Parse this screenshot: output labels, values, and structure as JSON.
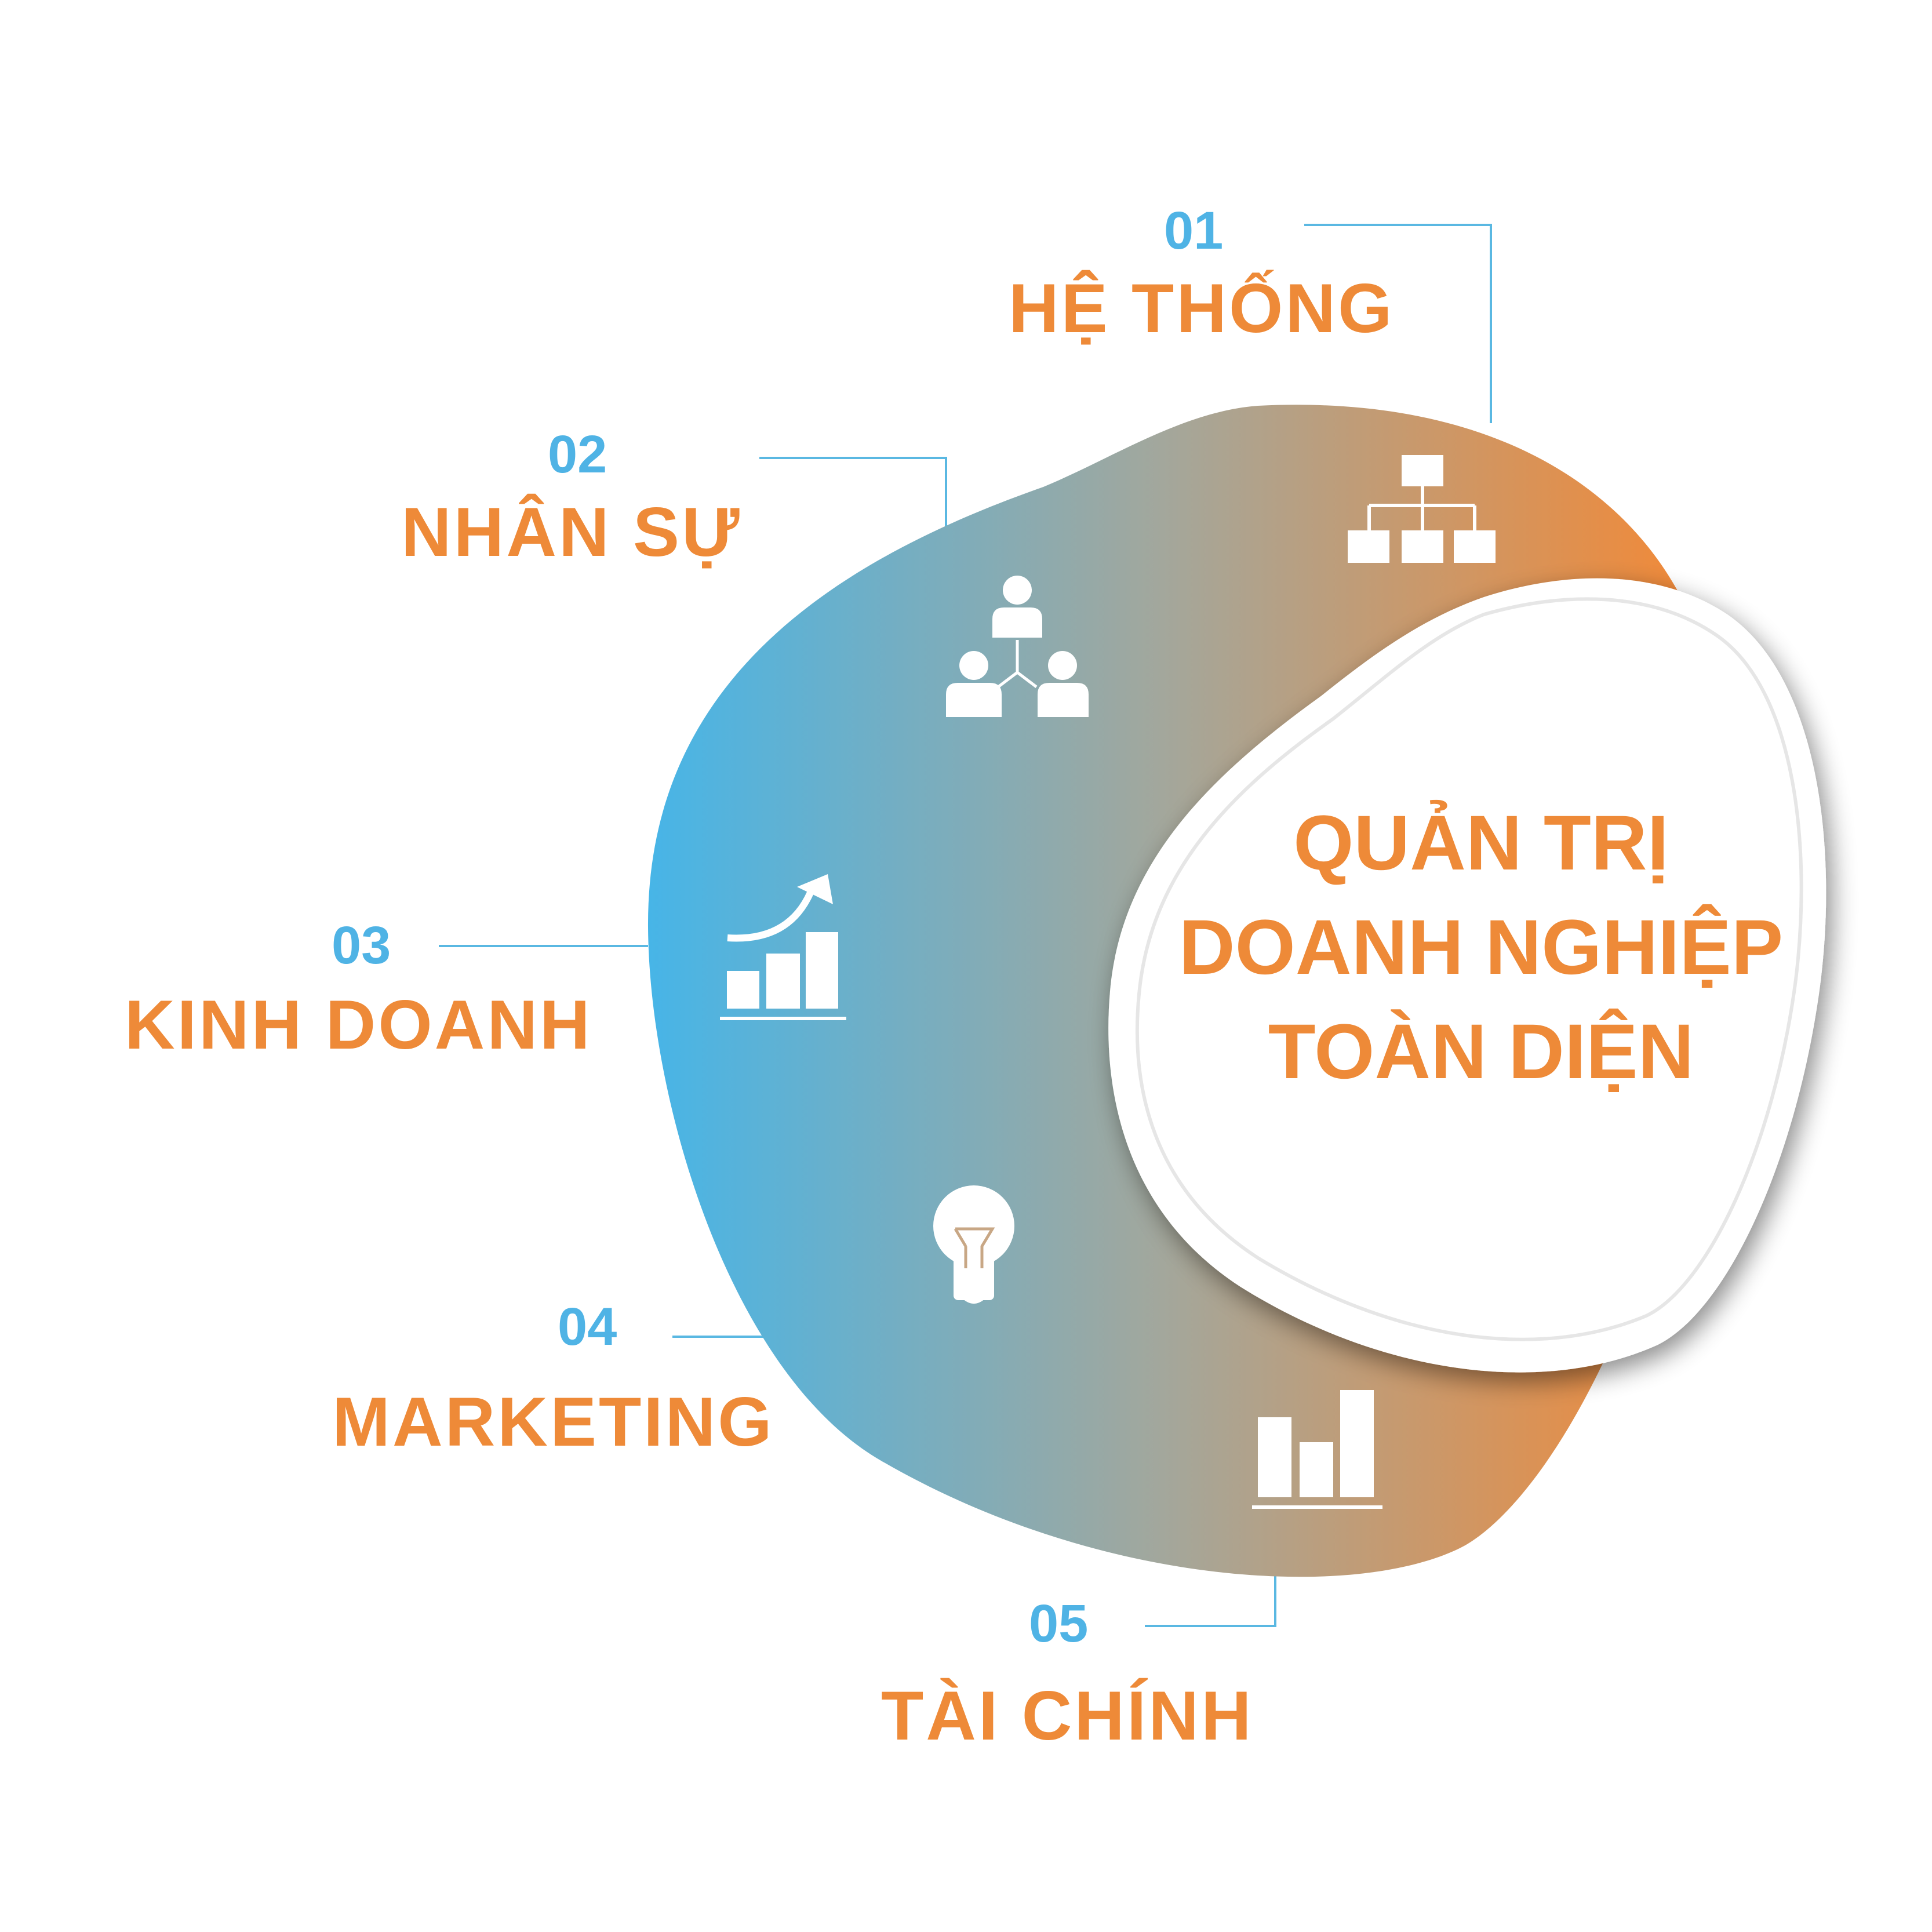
{
  "center": {
    "line1": "QUẢN TRỊ",
    "line2": "DOANH NGHIỆP",
    "line3": "TOÀN DIỆN"
  },
  "items": [
    {
      "number": "01",
      "label": "HỆ THỐNG",
      "icon": "hierarchy-icon"
    },
    {
      "number": "02",
      "label": "NHÂN SỰ",
      "icon": "team-icon"
    },
    {
      "number": "03",
      "label": "KINH DOANH",
      "icon": "growth-chart-icon"
    },
    {
      "number": "04",
      "label": "MARKETING",
      "icon": "lightbulb-icon"
    },
    {
      "number": "05",
      "label": "TÀI CHÍNH",
      "icon": "bar-chart-icon"
    }
  ],
  "colors": {
    "blue": "#46b5e8",
    "orange": "#f08a3a",
    "number": "#4fb3e5",
    "label": "#ee8a38",
    "connector": "#5ab8e2",
    "icon": "#ffffff"
  }
}
